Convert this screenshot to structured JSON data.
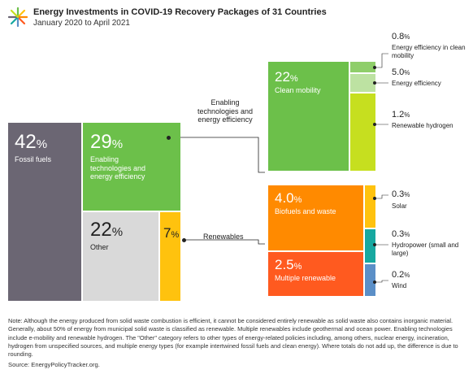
{
  "header": {
    "title": "Energy Investments in COVID-19 Recovery Packages of 31 Countries",
    "subtitle": "January 2020 to April 2021"
  },
  "chart_data": {
    "type": "treemap",
    "title": "Energy Investments in COVID-19 Recovery Packages of 31 Countries",
    "subtitle": "January 2020 to April 2021",
    "categories": [
      {
        "label": "Fossil fuels",
        "pct": "42",
        "color": "#6b6673"
      },
      {
        "label": "Enabling technologies and energy efficiency",
        "pct": "29",
        "color": "#6cc04a"
      },
      {
        "label": "Other",
        "pct": "22",
        "color": "#d9d9d9"
      },
      {
        "label": "Renewables",
        "pct": "7",
        "color": "#ffc20e"
      }
    ],
    "enabling_breakdown": {
      "caption": "Enabling technologies and energy efficiency",
      "items": [
        {
          "label": "Clean mobility",
          "pct": "22",
          "color": "#6cc04a"
        },
        {
          "label": "Energy efficiency in clean mobility",
          "pct": "0.8",
          "color": "#8fce6a"
        },
        {
          "label": "Energy efficiency",
          "pct": "5.0",
          "color": "#bde2a2"
        },
        {
          "label": "Renewable hydrogen",
          "pct": "1.2",
          "color": "#c6df1f"
        }
      ]
    },
    "renewables_breakdown": {
      "caption": "Renewables",
      "items": [
        {
          "label": "Biofuels and waste",
          "pct": "4.0",
          "color": "#ff8a00"
        },
        {
          "label": "Multiple renewable",
          "pct": "2.5",
          "color": "#ff5a1f"
        },
        {
          "label": "Solar",
          "pct": "0.3",
          "color": "#ffc20e"
        },
        {
          "label": "Hydropower (small and large)",
          "pct": "0.3",
          "color": "#17a8a0"
        },
        {
          "label": "Wind",
          "pct": "0.2",
          "color": "#5b8fc7"
        }
      ]
    },
    "percent_symbol": "%"
  },
  "footer": {
    "note": "Note: Although the energy produced from solid waste combustion is efficient, it cannot be considered entirely renewable as solid waste also contains inorganic material. Generally, about 50% of energy from municipal solid waste is classified as renewable. Multiple renewables include geothermal and ocean power. Enabling technologies include e-mobility and renewable hydrogen. The \"Other\" category refers to other types of energy-related policies including, among others, nuclear energy, incineration, hydrogen from unspecified sources, and multiple energy types (for example intertwined fossil fuels and clean energy). Where totals do not add up, the difference is due to rounding.",
    "source": "Source: EnergyPolicyTracker.org."
  }
}
